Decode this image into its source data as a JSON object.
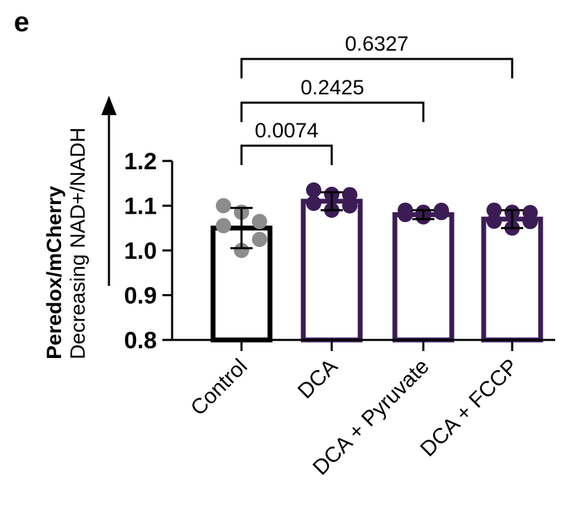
{
  "panel_label": "e",
  "colors": {
    "control_bar": "#000000",
    "control_points": "#8c8c8c",
    "treatment": "#3b1c55",
    "axis": "#000000"
  },
  "chart_data": {
    "type": "bar",
    "title": "",
    "ylabel": "Peredox/mCherry",
    "ylabel_secondary": "Decreasing NAD+/NADH",
    "xlabel": "",
    "ylim": [
      0.8,
      1.2
    ],
    "yticks": [
      "0.8",
      "0.9",
      "1.0",
      "1.1",
      "1.2"
    ],
    "grid": false,
    "categories": [
      "Control",
      "DCA",
      "DCA + Pyruvate",
      "DCA + FCCP"
    ],
    "means": [
      1.05,
      1.11,
      1.08,
      1.07
    ],
    "sd": [
      0.045,
      0.02,
      0.01,
      0.02
    ],
    "points": [
      [
        1.1,
        1.09,
        1.06,
        1.06,
        1.02,
        1.0
      ],
      [
        1.135,
        1.13,
        1.12,
        1.11,
        1.095,
        1.09
      ],
      [
        1.09,
        1.09,
        1.085,
        1.085,
        1.08,
        1.075
      ],
      [
        1.09,
        1.09,
        1.08,
        1.07,
        1.06,
        1.05
      ]
    ],
    "comparisons": [
      {
        "from": "Control",
        "to": "DCA",
        "p": "0.0074"
      },
      {
        "from": "Control",
        "to": "DCA + Pyruvate",
        "p": "0.2425"
      },
      {
        "from": "Control",
        "to": "DCA + FCCP",
        "p": "0.6327"
      }
    ]
  }
}
